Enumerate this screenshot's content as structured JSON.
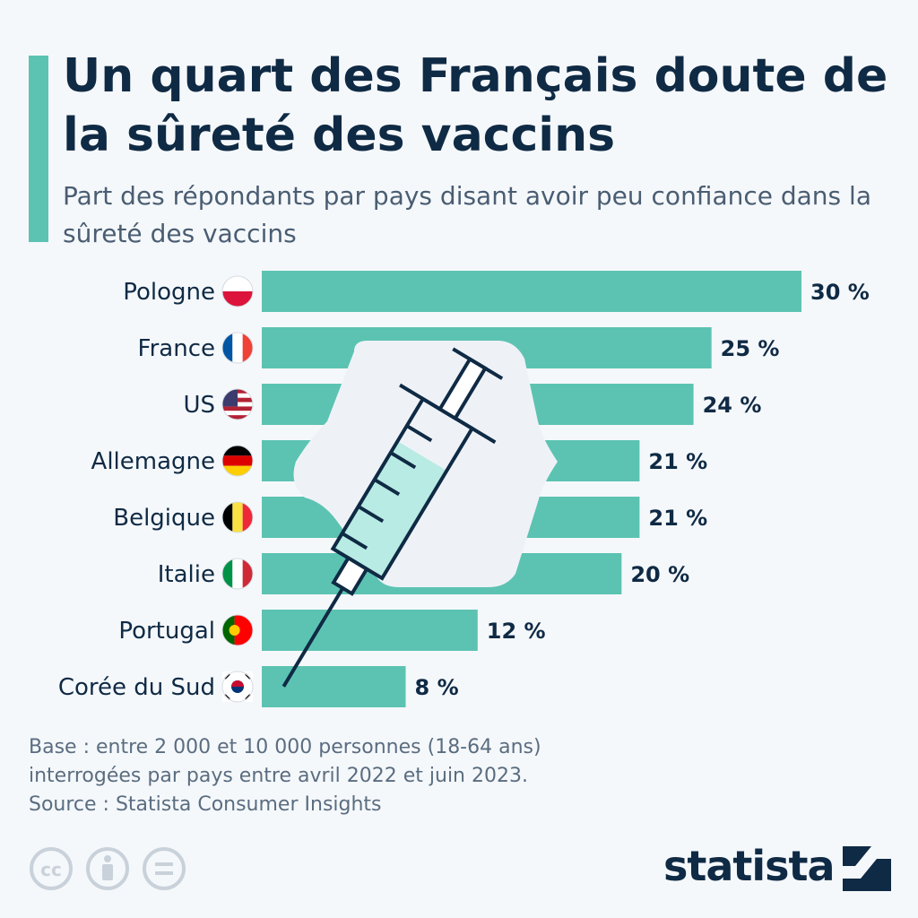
{
  "header": {
    "title": "Un quart des Français doute de la sûreté des vaccins",
    "subtitle": "Part des répondants par pays disant avoir peu confiance dans la sûreté des vaccins"
  },
  "chart_data": {
    "type": "bar",
    "orientation": "horizontal",
    "title": "Un quart des Français doute de la sûreté des vaccins",
    "subtitle": "Part des répondants par pays disant avoir peu confiance dans la sûreté des vaccins",
    "categories": [
      "Pologne",
      "France",
      "US",
      "Allemagne",
      "Belgique",
      "Italie",
      "Portugal",
      "Corée du Sud"
    ],
    "values": [
      30,
      25,
      24,
      21,
      21,
      20,
      12,
      8
    ],
    "value_labels": [
      "30 %",
      "25 %",
      "24 %",
      "21 %",
      "21 %",
      "20 %",
      "12 %",
      "8 %"
    ],
    "unit": "%",
    "xlim": [
      0,
      30
    ],
    "grid": false,
    "bar_color": "#5cc3b2"
  },
  "flags": [
    {
      "country": "Pologne",
      "icon": "poland-flag-icon"
    },
    {
      "country": "France",
      "icon": "france-flag-icon"
    },
    {
      "country": "US",
      "icon": "us-flag-icon"
    },
    {
      "country": "Allemagne",
      "icon": "germany-flag-icon"
    },
    {
      "country": "Belgique",
      "icon": "belgium-flag-icon"
    },
    {
      "country": "Italie",
      "icon": "italy-flag-icon"
    },
    {
      "country": "Portugal",
      "icon": "portugal-flag-icon"
    },
    {
      "country": "Corée du Sud",
      "icon": "south-korea-flag-icon"
    }
  ],
  "footer": {
    "base_line1": "Base : entre 2 000 et 10 000 personnes (18-64 ans)",
    "base_line2": "interrogées par pays entre avril 2022 et juin 2023.",
    "source": "Source : Statista Consumer Insights",
    "brand": "statista",
    "license_icons": [
      "cc-icon",
      "attribution-icon",
      "no-derivatives-icon"
    ]
  },
  "colors": {
    "accent": "#5cc3b2",
    "text_dark": "#0f2a44",
    "text_muted": "#5a6d80",
    "background": "#f5f8fb"
  }
}
